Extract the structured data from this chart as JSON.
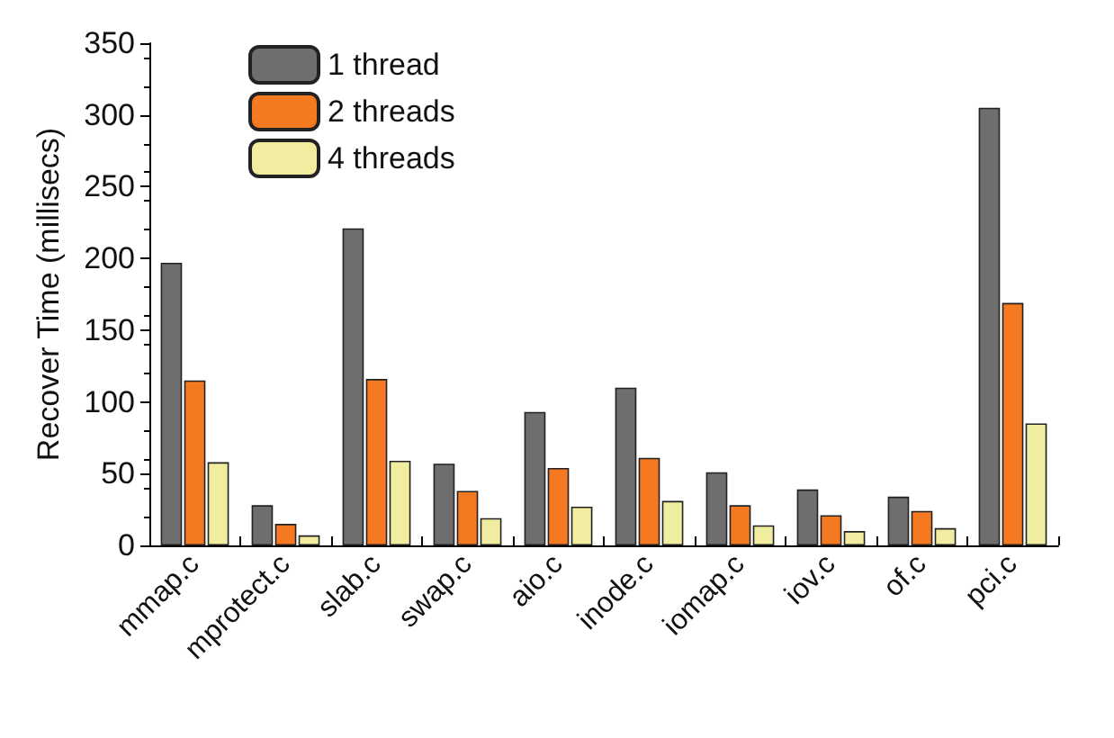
{
  "chart_data": {
    "type": "bar",
    "ylabel": "Recover Time (millisecs)",
    "categories": [
      "mmap.c",
      "mprotect.c",
      "slab.c",
      "swap.c",
      "aio.c",
      "inode.c",
      "iomap.c",
      "iov.c",
      "of.c",
      "pci.c"
    ],
    "series": [
      {
        "name": "1 thread",
        "color": "#6e6e6e",
        "values": [
          197,
          28,
          221,
          57,
          93,
          110,
          51,
          39,
          34,
          305
        ]
      },
      {
        "name": "2 threads",
        "color": "#f47920",
        "values": [
          115,
          15,
          116,
          38,
          54,
          61,
          28,
          21,
          24,
          169
        ]
      },
      {
        "name": "4 threads",
        "color": "#f0eca0",
        "values": [
          58,
          7,
          59,
          19,
          27,
          31,
          14,
          10,
          12,
          85
        ]
      }
    ],
    "ylim": [
      0,
      350
    ],
    "yticks": [
      0,
      50,
      100,
      150,
      200,
      250,
      300,
      350
    ],
    "grid": false,
    "legend": "top left"
  }
}
